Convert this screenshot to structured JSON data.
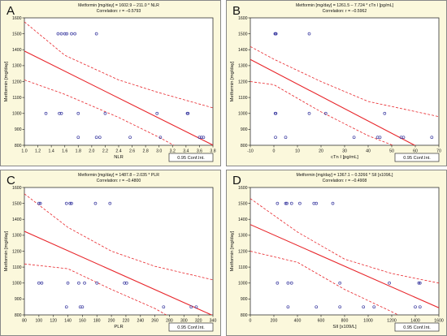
{
  "colors": {
    "panel_bg": "#fbf8dc",
    "plot_bg": "#ffffff",
    "fit_line": "#e8252a",
    "ci_line": "#e8252a",
    "points": "#3a3aa0",
    "axis": "#333333"
  },
  "chart_data": [
    {
      "type": "scatter",
      "panel_label": "A",
      "title_line1": "Metformin [mg/day] = 1602.9 – 211.0 * NLR",
      "title_line2": "Correlation: r = –0.5793",
      "xlabel": "NLR",
      "ylabel": "Metformin [mg/day]",
      "xlim": [
        1.0,
        3.8
      ],
      "ylim": [
        800,
        1600
      ],
      "xticks": [
        1.0,
        1.2,
        1.4,
        1.6,
        1.8,
        2.0,
        2.2,
        2.4,
        2.6,
        2.8,
        3.0,
        3.2,
        3.4,
        3.6,
        3.8
      ],
      "yticks": [
        800,
        900,
        1000,
        1100,
        1200,
        1300,
        1400,
        1500,
        1600
      ],
      "tick_decimals": 1,
      "intercept": 1602.9,
      "slope": -211.0,
      "ci_upper": [
        [
          1.0,
          1575
        ],
        [
          1.6,
          1365
        ],
        [
          2.4,
          1210
        ],
        [
          3.0,
          1130
        ],
        [
          3.8,
          1035
        ]
      ],
      "ci_lower": [
        [
          1.0,
          1210
        ],
        [
          1.6,
          1120
        ],
        [
          2.4,
          975
        ],
        [
          3.0,
          850
        ],
        [
          3.75,
          680
        ]
      ],
      "points": [
        [
          1.32,
          1000
        ],
        [
          1.52,
          1000
        ],
        [
          1.55,
          1000
        ],
        [
          1.5,
          1500
        ],
        [
          1.55,
          1500
        ],
        [
          1.6,
          1500
        ],
        [
          1.63,
          1500
        ],
        [
          1.7,
          1500
        ],
        [
          1.75,
          1500
        ],
        [
          1.8,
          1000
        ],
        [
          1.8,
          850
        ],
        [
          2.07,
          1500
        ],
        [
          2.07,
          850
        ],
        [
          2.12,
          850
        ],
        [
          2.2,
          1000
        ],
        [
          2.57,
          850
        ],
        [
          2.97,
          1000
        ],
        [
          3.02,
          850
        ],
        [
          3.42,
          1000
        ],
        [
          3.43,
          1000
        ],
        [
          3.6,
          850
        ],
        [
          3.63,
          850
        ],
        [
          3.66,
          850
        ]
      ],
      "legend_label": "0.95 Conf.Int."
    },
    {
      "type": "scatter",
      "panel_label": "B",
      "title_line1": "Metformin [mg/day] = 1261.5 – 7.724 * cTn I [pg/mL]",
      "title_line2": "Correlation: r = –0.5962",
      "xlabel": "cTn I [pg/mL]",
      "ylabel": "Metformin [mg/day]",
      "xlim": [
        -10,
        70
      ],
      "ylim": [
        800,
        1600
      ],
      "xticks": [
        -10,
        0,
        10,
        20,
        30,
        40,
        50,
        60,
        70
      ],
      "yticks": [
        800,
        900,
        1000,
        1100,
        1200,
        1300,
        1400,
        1500,
        1600
      ],
      "tick_decimals": 0,
      "intercept": 1261.5,
      "slope": -7.724,
      "ci_upper": [
        [
          -10,
          1420
        ],
        [
          0,
          1340
        ],
        [
          20,
          1200
        ],
        [
          40,
          1075
        ],
        [
          70,
          980
        ]
      ],
      "ci_lower": [
        [
          -10,
          1200
        ],
        [
          0,
          1180
        ],
        [
          20,
          1010
        ],
        [
          40,
          860
        ],
        [
          60,
          745
        ]
      ],
      "points": [
        [
          0.5,
          1500
        ],
        [
          0.7,
          1500
        ],
        [
          0.9,
          1500
        ],
        [
          0.6,
          1000
        ],
        [
          0.8,
          1000
        ],
        [
          0.7,
          850
        ],
        [
          5,
          850
        ],
        [
          15,
          1500
        ],
        [
          15,
          1000
        ],
        [
          22,
          1000
        ],
        [
          34,
          850
        ],
        [
          44,
          850
        ],
        [
          45,
          850
        ],
        [
          47,
          1000
        ],
        [
          54,
          850
        ],
        [
          55,
          850
        ],
        [
          67,
          850
        ]
      ],
      "legend_label": "0.95 Conf.Int."
    },
    {
      "type": "scatter",
      "panel_label": "C",
      "title_line1": "Metformin [mg/day] = 1487.8 – 2.035 * PLR",
      "title_line2": "Correlation: r = –0.4800",
      "xlabel": "PLR",
      "ylabel": "Metformin [mg/day]",
      "xlim": [
        80,
        340
      ],
      "ylim": [
        800,
        1600
      ],
      "xticks": [
        80,
        100,
        120,
        140,
        160,
        180,
        200,
        220,
        240,
        260,
        280,
        300,
        320,
        340
      ],
      "yticks": [
        800,
        900,
        1000,
        1100,
        1200,
        1300,
        1400,
        1500,
        1600
      ],
      "tick_decimals": 0,
      "intercept": 1487.8,
      "slope": -2.035,
      "ci_upper": [
        [
          80,
          1560
        ],
        [
          140,
          1350
        ],
        [
          200,
          1200
        ],
        [
          260,
          1105
        ],
        [
          340,
          1020
        ]
      ],
      "ci_lower": [
        [
          80,
          1120
        ],
        [
          140,
          1090
        ],
        [
          200,
          960
        ],
        [
          260,
          840
        ],
        [
          295,
          750
        ]
      ],
      "points": [
        [
          100,
          1500
        ],
        [
          102,
          1500
        ],
        [
          100,
          1000
        ],
        [
          104,
          1000
        ],
        [
          138,
          1500
        ],
        [
          143,
          1500
        ],
        [
          145,
          1500
        ],
        [
          140,
          1000
        ],
        [
          138,
          850
        ],
        [
          155,
          1000
        ],
        [
          157,
          850
        ],
        [
          160,
          850
        ],
        [
          163,
          1000
        ],
        [
          178,
          1500
        ],
        [
          180,
          1000
        ],
        [
          198,
          1500
        ],
        [
          218,
          1000
        ],
        [
          221,
          1000
        ],
        [
          272,
          850
        ],
        [
          310,
          850
        ],
        [
          317,
          850
        ]
      ],
      "legend_label": "0.95 Conf.Int."
    },
    {
      "type": "scatter",
      "panel_label": "D",
      "title_line1": "Metformin [mg/day] = 1367.1 – 0.3266 * SII [x109/L]",
      "title_line2": "Correlation: r = –0.4908",
      "xlabel": "SII [x109/L]",
      "ylabel": "Metformin [mg/day]",
      "xlim": [
        0,
        1600
      ],
      "ylim": [
        800,
        1600
      ],
      "xticks": [
        0,
        200,
        400,
        600,
        800,
        1000,
        1200,
        1400,
        1600
      ],
      "yticks": [
        800,
        900,
        1000,
        1100,
        1200,
        1300,
        1400,
        1500,
        1600
      ],
      "tick_decimals": 0,
      "intercept": 1367.1,
      "slope": -0.3266,
      "ci_upper": [
        [
          0,
          1530
        ],
        [
          400,
          1320
        ],
        [
          800,
          1150
        ],
        [
          1200,
          1060
        ],
        [
          1600,
          1000
        ]
      ],
      "ci_lower": [
        [
          0,
          1200
        ],
        [
          400,
          1130
        ],
        [
          800,
          960
        ],
        [
          1200,
          820
        ],
        [
          1560,
          690
        ]
      ],
      "points": [
        [
          230,
          1500
        ],
        [
          300,
          1500
        ],
        [
          310,
          1500
        ],
        [
          350,
          1500
        ],
        [
          420,
          1500
        ],
        [
          540,
          1500
        ],
        [
          560,
          1500
        ],
        [
          700,
          1500
        ],
        [
          230,
          1000
        ],
        [
          320,
          1000
        ],
        [
          350,
          1000
        ],
        [
          760,
          1000
        ],
        [
          1180,
          1000
        ],
        [
          1430,
          1000
        ],
        [
          1440,
          1000
        ],
        [
          320,
          850
        ],
        [
          560,
          850
        ],
        [
          760,
          850
        ],
        [
          960,
          850
        ],
        [
          1050,
          850
        ],
        [
          1400,
          850
        ],
        [
          1440,
          850
        ]
      ],
      "legend_label": "0.95 Conf.Int."
    }
  ]
}
